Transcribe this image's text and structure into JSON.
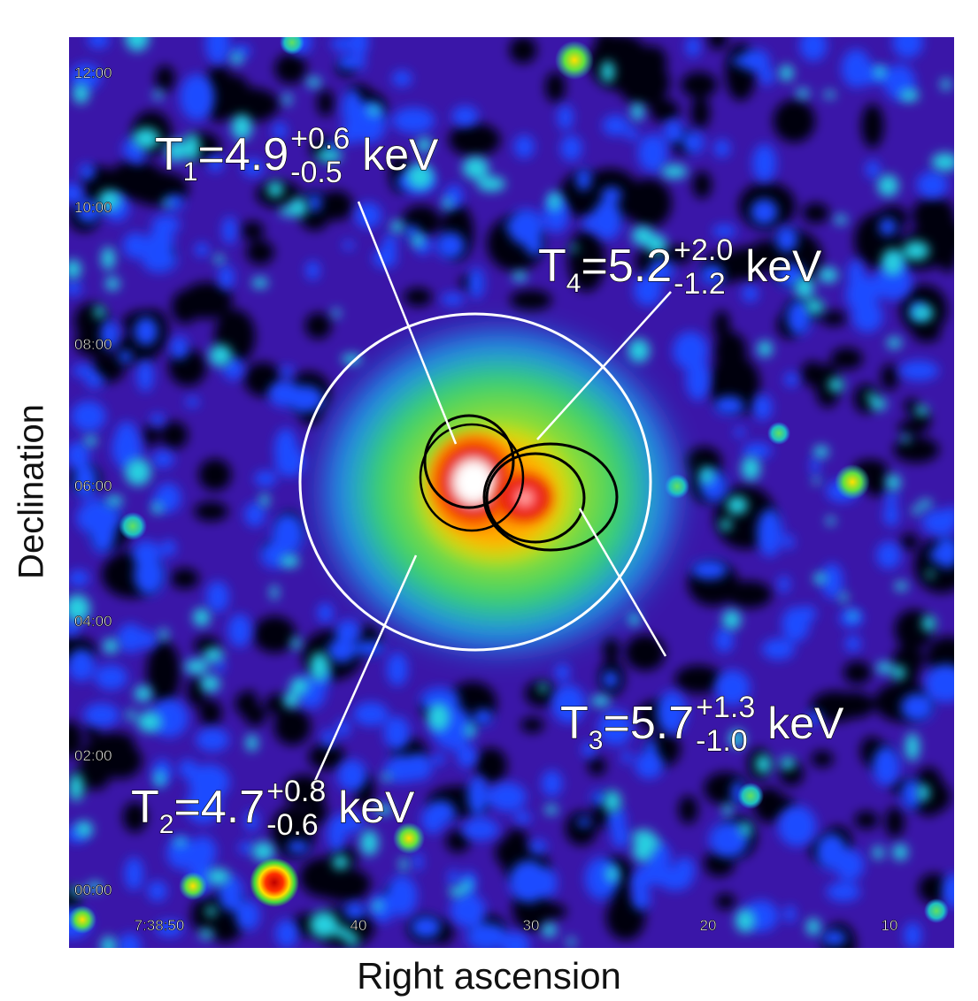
{
  "figure": {
    "xlabel": "Right ascension",
    "ylabel": "Declination",
    "colormap": [
      "#000000",
      "#3a0a6a",
      "#4a1cc8",
      "#0a3cff",
      "#1aa8ff",
      "#20e0c0",
      "#40d840",
      "#ffe000",
      "#ff7a00",
      "#e00000",
      "#ffffff"
    ]
  },
  "dec_ticks": [
    {
      "label": "12:00"
    },
    {
      "label": "10:00"
    },
    {
      "label": "08:00"
    },
    {
      "label": "06:00"
    },
    {
      "label": "04:00"
    },
    {
      "label": "02:00"
    },
    {
      "label": "00:00"
    }
  ],
  "ra_ticks": [
    {
      "label": "7:38:50"
    },
    {
      "label": "40"
    },
    {
      "label": "30"
    },
    {
      "label": "20"
    },
    {
      "label": "10"
    }
  ],
  "annotations": [
    {
      "id": "T1",
      "base": "T",
      "sub": "1",
      "value": "4.9",
      "plus": "+0.6",
      "minus": "-0.5",
      "unit": "keV"
    },
    {
      "id": "T4",
      "base": "T",
      "sub": "4",
      "value": "5.2",
      "plus": "+2.0",
      "minus": "-1.2",
      "unit": "keV"
    },
    {
      "id": "T3",
      "base": "T",
      "sub": "3",
      "value": "5.7",
      "plus": "+1.3",
      "minus": "-1.0",
      "unit": "keV"
    },
    {
      "id": "T2",
      "base": "T",
      "sub": "2",
      "value": "4.7",
      "plus": "+0.8",
      "minus": "-0.6",
      "unit": "keV"
    }
  ]
}
